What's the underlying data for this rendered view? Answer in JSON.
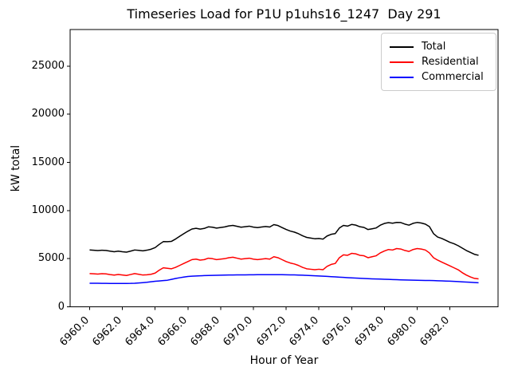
{
  "figure": {
    "title": "Timeseries Load for P1U p1uhs16_1247  Day 291",
    "xlabel": "Hour of Year",
    "ylabel": "kW total"
  },
  "legend": {
    "position": "upper right",
    "items": [
      {
        "label": "Total",
        "color": "#000000"
      },
      {
        "label": "Residential",
        "color": "#ff0000"
      },
      {
        "label": "Commercial",
        "color": "#0000ff"
      }
    ]
  },
  "chart_data": {
    "type": "line",
    "title": "Timeseries Load for P1U p1uhs16_1247  Day 291",
    "xlabel": "Hour of Year",
    "ylabel": "kW total",
    "grid": false,
    "legend_position": "upper right",
    "xlim": [
      6958.81,
      6984.94
    ],
    "ylim": [
      0,
      28800
    ],
    "x_start": 6960.0,
    "x_step": 0.25,
    "n_points": 96,
    "xticks": [
      {
        "value": 6960,
        "label": "6960.0"
      },
      {
        "value": 6962,
        "label": "6962.0"
      },
      {
        "value": 6964,
        "label": "6964.0"
      },
      {
        "value": 6966,
        "label": "6966.0"
      },
      {
        "value": 6968,
        "label": "6968.0"
      },
      {
        "value": 6970,
        "label": "6970.0"
      },
      {
        "value": 6972,
        "label": "6972.0"
      },
      {
        "value": 6974,
        "label": "6974.0"
      },
      {
        "value": 6976,
        "label": "6976.0"
      },
      {
        "value": 6978,
        "label": "6978.0"
      },
      {
        "value": 6980,
        "label": "6980.0"
      },
      {
        "value": 6982,
        "label": "6982.0"
      }
    ],
    "yticks": [
      {
        "value": 0,
        "label": "0"
      },
      {
        "value": 5000,
        "label": "5000"
      },
      {
        "value": 10000,
        "label": "10000"
      },
      {
        "value": 15000,
        "label": "15000"
      },
      {
        "value": 20000,
        "label": "20000"
      },
      {
        "value": 25000,
        "label": "25000"
      }
    ],
    "series": [
      {
        "name": "Total",
        "color": "#000000",
        "values": [
          5900,
          5875,
          5840,
          5875,
          5850,
          5780,
          5715,
          5780,
          5720,
          5675,
          5780,
          5900,
          5860,
          5810,
          5880,
          5980,
          6150,
          6480,
          6770,
          6760,
          6800,
          7040,
          7320,
          7590,
          7850,
          8080,
          8150,
          8070,
          8140,
          8305,
          8265,
          8175,
          8235,
          8295,
          8400,
          8455,
          8360,
          8265,
          8320,
          8375,
          8280,
          8230,
          8285,
          8335,
          8290,
          8540,
          8440,
          8235,
          8030,
          7870,
          7760,
          7595,
          7380,
          7210,
          7140,
          7070,
          7100,
          7030,
          7355,
          7530,
          7605,
          8180,
          8455,
          8380,
          8555,
          8485,
          8315,
          8245,
          8025,
          8105,
          8190,
          8475,
          8660,
          8745,
          8680,
          8765,
          8750,
          8590,
          8480,
          8670,
          8760,
          8700,
          8590,
          8330,
          7600,
          7250,
          7100,
          6900,
          6700,
          6550,
          6350,
          6100,
          5850,
          5650,
          5450,
          5350
        ]
      },
      {
        "name": "Residential",
        "color": "#ff0000",
        "values": [
          3450,
          3430,
          3400,
          3440,
          3420,
          3350,
          3290,
          3360,
          3300,
          3250,
          3350,
          3450,
          3380,
          3300,
          3330,
          3380,
          3500,
          3800,
          4050,
          4000,
          3950,
          4100,
          4300,
          4500,
          4700,
          4900,
          4950,
          4850,
          4900,
          5050,
          5000,
          4900,
          4950,
          5000,
          5100,
          5150,
          5050,
          4950,
          5000,
          5050,
          4950,
          4900,
          4950,
          5000,
          4950,
          5200,
          5100,
          4900,
          4700,
          4550,
          4450,
          4300,
          4100,
          3950,
          3900,
          3850,
          3900,
          3850,
          4200,
          4400,
          4500,
          5100,
          5400,
          5350,
          5550,
          5500,
          5350,
          5300,
          5100,
          5200,
          5300,
          5600,
          5800,
          5950,
          5900,
          6050,
          6000,
          5850,
          5750,
          5950,
          6050,
          6000,
          5900,
          5600,
          5100,
          4850,
          4650,
          4450,
          4250,
          4050,
          3850,
          3550,
          3300,
          3100,
          2950,
          2900
        ]
      },
      {
        "name": "Commercial",
        "color": "#0000ff",
        "values": [
          2450,
          2445,
          2440,
          2435,
          2430,
          2428,
          2425,
          2422,
          2420,
          2424,
          2430,
          2450,
          2480,
          2510,
          2550,
          2600,
          2650,
          2680,
          2720,
          2760,
          2850,
          2940,
          3020,
          3090,
          3150,
          3180,
          3200,
          3220,
          3240,
          3255,
          3265,
          3275,
          3285,
          3295,
          3300,
          3305,
          3310,
          3315,
          3320,
          3325,
          3330,
          3332,
          3334,
          3336,
          3338,
          3340,
          3338,
          3334,
          3330,
          3320,
          3310,
          3295,
          3280,
          3260,
          3240,
          3220,
          3200,
          3180,
          3155,
          3130,
          3105,
          3080,
          3055,
          3030,
          3005,
          2985,
          2965,
          2945,
          2925,
          2905,
          2890,
          2875,
          2860,
          2845,
          2830,
          2815,
          2800,
          2790,
          2780,
          2770,
          2760,
          2750,
          2740,
          2730,
          2720,
          2705,
          2690,
          2675,
          2660,
          2640,
          2620,
          2595,
          2570,
          2545,
          2520,
          2500
        ]
      }
    ]
  }
}
